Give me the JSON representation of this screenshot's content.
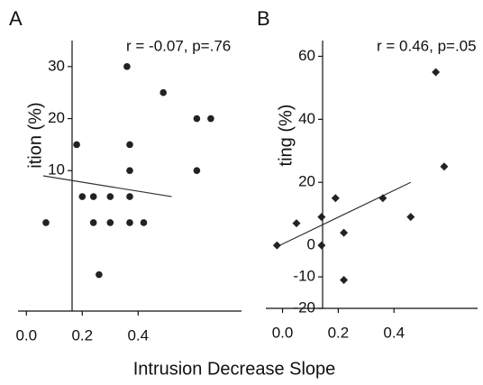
{
  "chart_data": [
    {
      "type": "scatter",
      "panel": "A",
      "annotation": "r = -0.07, p=.76",
      "ylabel": "ition (%)",
      "marker": "circle",
      "color": "#222",
      "x": [
        0.18,
        0.36,
        0.37,
        0.37,
        0.49,
        0.61,
        0.66,
        0.61,
        0.2,
        0.24,
        0.3,
        0.37,
        0.07,
        0.24,
        0.3,
        0.37,
        0.42,
        0.26
      ],
      "y": [
        15,
        30,
        15,
        10,
        25,
        20,
        20,
        10,
        5,
        5,
        5,
        5,
        0,
        0,
        0,
        0,
        0,
        -10
      ],
      "fit_line": {
        "x": [
          0.06,
          0.52
        ],
        "y": [
          9,
          5
        ]
      },
      "xlim": [
        -0.03,
        0.77
      ],
      "ylim": [
        -17,
        35
      ],
      "xticks": [
        {
          "value": 0,
          "label": "0.0"
        },
        0.2,
        0.4
      ],
      "yticks": [
        10,
        20,
        30
      ]
    },
    {
      "type": "scatter",
      "panel": "B",
      "annotation": "r = 0.46, p=.05",
      "ylabel": "ting (%)",
      "marker": "diamond",
      "color": "#222",
      "x": [
        0.55,
        0.58,
        -0.02,
        0.05,
        0.14,
        0.14,
        0.19,
        0.22,
        0.36,
        0.46,
        0.22
      ],
      "y": [
        55,
        25,
        0,
        7,
        9,
        0,
        15,
        4,
        15,
        9,
        -11
      ],
      "fit_line": {
        "x": [
          -0.01,
          0.46
        ],
        "y": [
          0,
          20
        ]
      },
      "xlim": [
        -0.06,
        0.7
      ],
      "ylim": [
        -20,
        65
      ],
      "xticks": [
        {
          "value": 0,
          "label": "0.0"
        },
        0.2,
        0.4
      ],
      "yticks": [
        -20,
        -10,
        0,
        20,
        40,
        60
      ]
    }
  ],
  "figure": {
    "xlabel": "Intrusion Decrease Slope"
  }
}
